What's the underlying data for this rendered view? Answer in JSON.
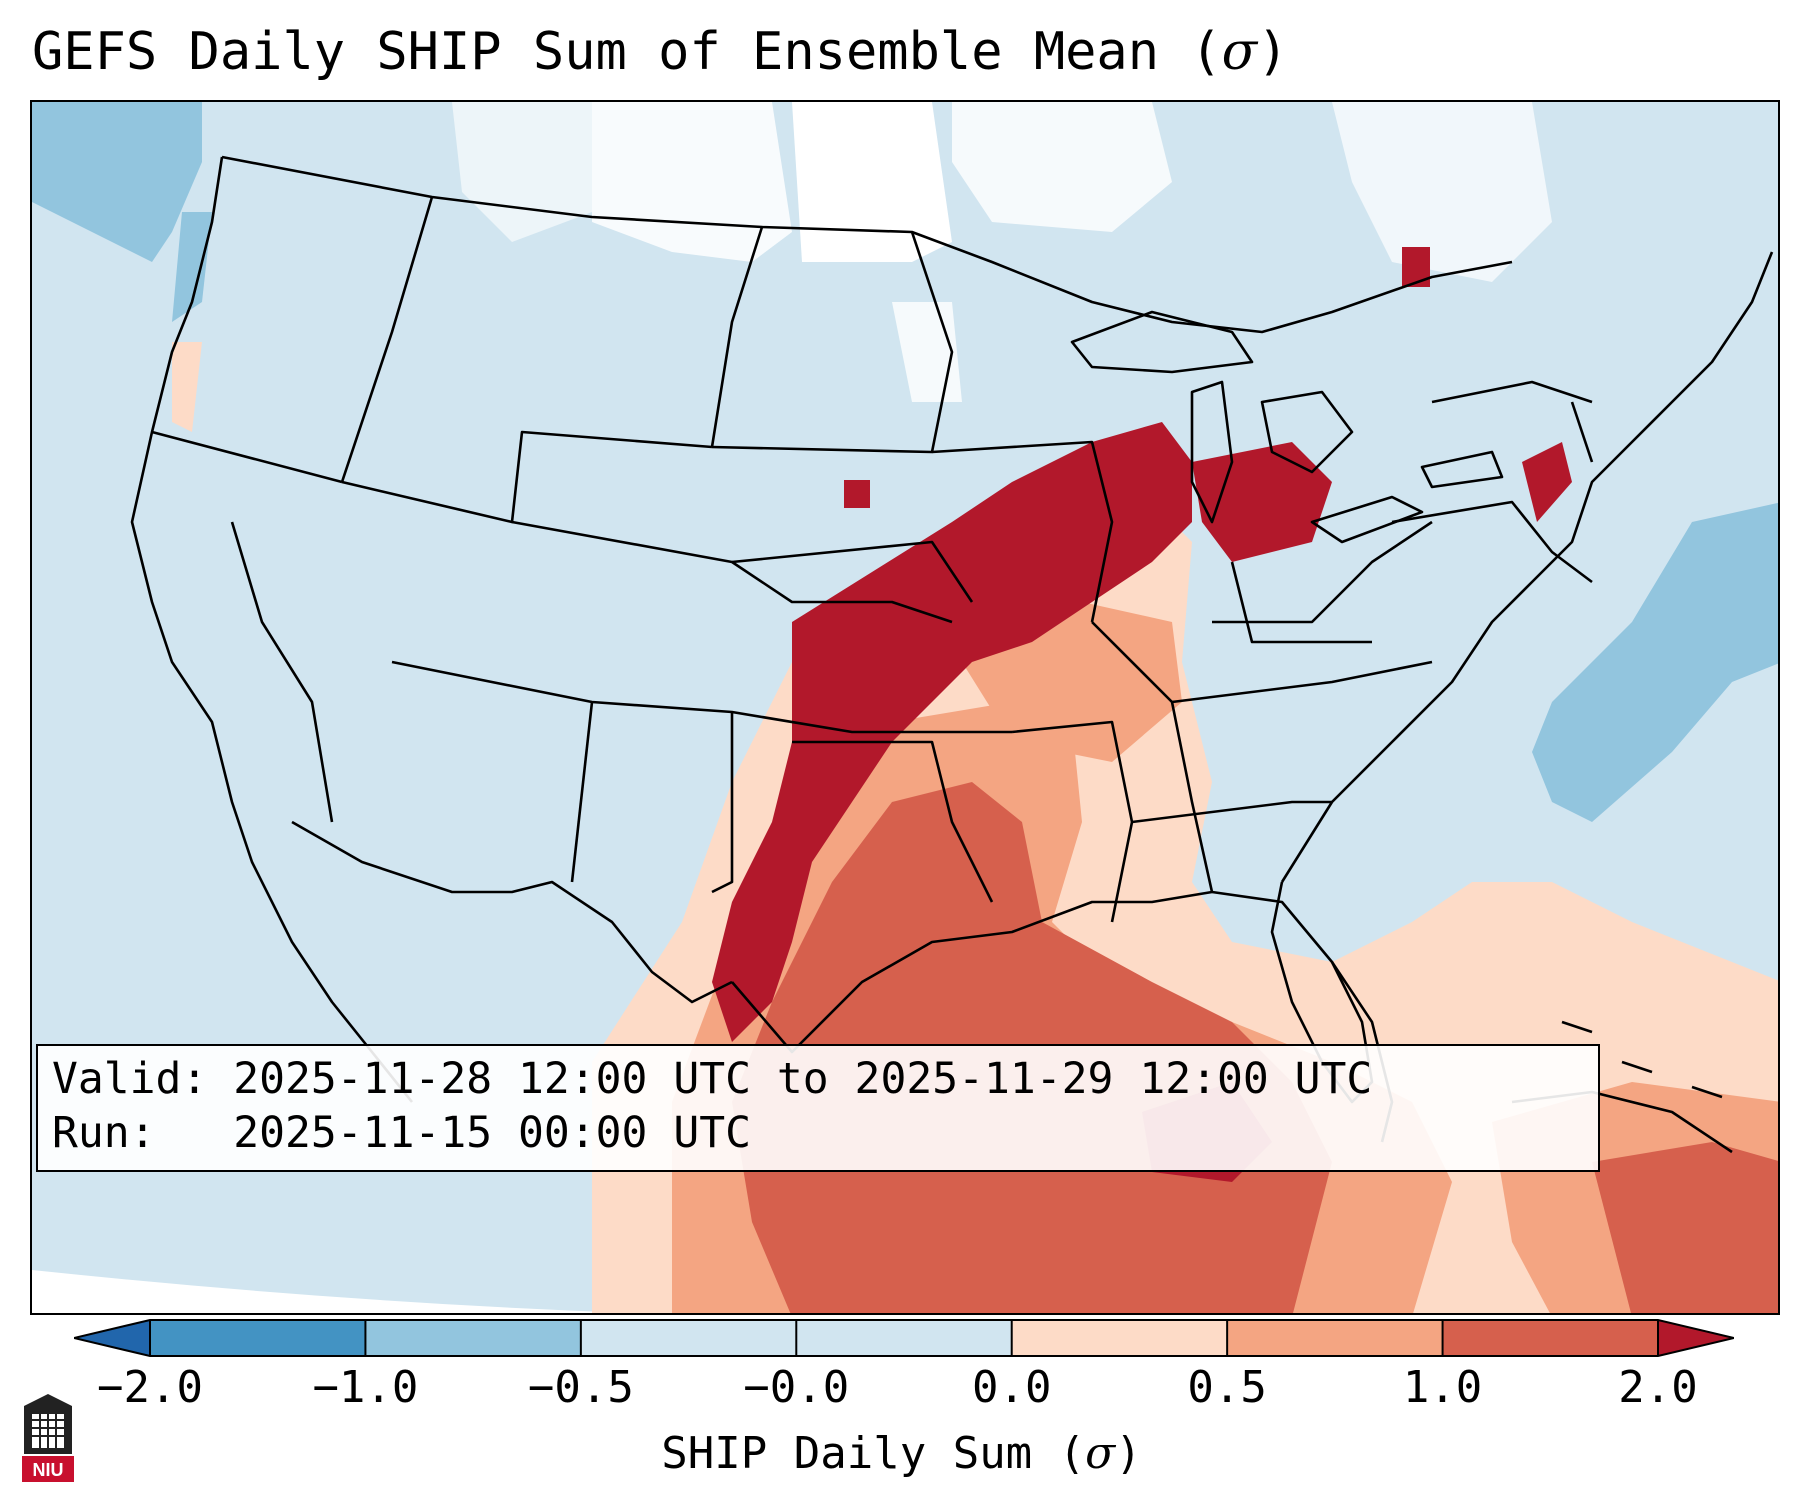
{
  "title": {
    "text": "GEFS Daily SHIP Sum of Ensemble Mean (",
    "symbol": "σ",
    "close": ")"
  },
  "info": {
    "valid_label": "Valid:",
    "valid_value": "2025-11-28 12:00 UTC to 2025-11-29 12:00 UTC",
    "run_label": "Run:",
    "run_value": "2025-11-15 00:00 UTC"
  },
  "colorbar": {
    "ticks": [
      "−2.0",
      "−1.0",
      "−0.5",
      "−0.0",
      "0.0",
      "0.5",
      "1.0",
      "2.0"
    ],
    "colors": {
      "below_min": "#2166ac",
      "neg2_neg1": "#4393c3",
      "neg1_neg05": "#92c5de",
      "neg05_0": "#d1e5f0",
      "zero_05": "#fddbc7",
      "pos05_1": "#f4a582",
      "pos1_2": "#d6604d",
      "above_max": "#b2182b"
    },
    "label_text": "SHIP Daily Sum (",
    "label_symbol": "σ",
    "label_close": ")"
  },
  "logo": {
    "text": "NIU"
  }
}
